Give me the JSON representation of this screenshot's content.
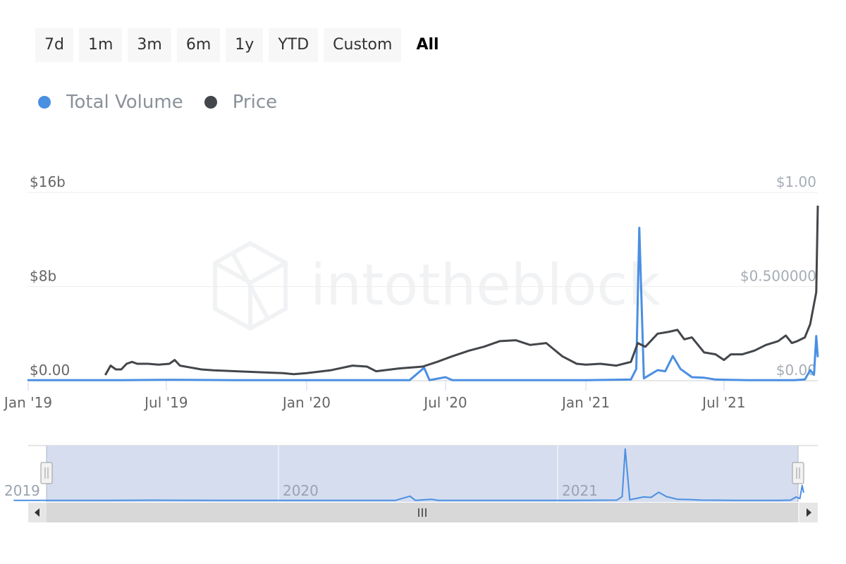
{
  "range_selector": {
    "buttons": [
      "7d",
      "1m",
      "3m",
      "6m",
      "1y",
      "YTD",
      "Custom",
      "All"
    ],
    "active": "All"
  },
  "legend": {
    "items": [
      {
        "label": "Total Volume",
        "color": "#4a8fe2"
      },
      {
        "label": "Price",
        "color": "#43464a"
      }
    ]
  },
  "watermark": "intotheblock",
  "colors": {
    "volume": "#4a8fe2",
    "price": "#43464a",
    "navigator_fill": "#d3dbee",
    "scrollbar": "#d8d8d8"
  },
  "chart_data": {
    "type": "line",
    "x_start": "2019-01-01",
    "x_end": "2021-11-01",
    "x_ticks": [
      {
        "date": "2019-01-01",
        "label": "Jan '19"
      },
      {
        "date": "2019-07-01",
        "label": "Jul '19"
      },
      {
        "date": "2020-01-01",
        "label": "Jan '20"
      },
      {
        "date": "2020-07-01",
        "label": "Jul '20"
      },
      {
        "date": "2021-01-01",
        "label": "Jan '21"
      },
      {
        "date": "2021-07-01",
        "label": "Jul '21"
      }
    ],
    "y_left": {
      "ticks": [
        {
          "value": 0,
          "label": "$0.00"
        },
        {
          "value": 8,
          "label": "$8b"
        },
        {
          "value": 16,
          "label": "$16b"
        }
      ],
      "range": [
        0,
        16
      ],
      "unit": "billion USD"
    },
    "y_right": {
      "ticks": [
        {
          "value": 0,
          "label": "$0.00"
        },
        {
          "value": 0.5,
          "label": "$0.500000"
        },
        {
          "value": 1.0,
          "label": "$1.00"
        }
      ],
      "range": [
        0,
        1.0
      ],
      "unit": "USD"
    },
    "navigator": {
      "year_labels": [
        {
          "date": "2019-01-01",
          "label": "2019"
        },
        {
          "date": "2020-01-01",
          "label": "2020"
        },
        {
          "date": "2021-01-01",
          "label": "2021"
        }
      ]
    },
    "series": [
      {
        "name": "Price",
        "axis": "right",
        "color": "#43464a",
        "points": [
          [
            "2019-04-12",
            0.03
          ],
          [
            "2019-04-19",
            0.08
          ],
          [
            "2019-04-26",
            0.06
          ],
          [
            "2019-05-03",
            0.06
          ],
          [
            "2019-05-10",
            0.09
          ],
          [
            "2019-05-17",
            0.1
          ],
          [
            "2019-05-24",
            0.09
          ],
          [
            "2019-06-07",
            0.09
          ],
          [
            "2019-06-21",
            0.085
          ],
          [
            "2019-07-05",
            0.09
          ],
          [
            "2019-07-12",
            0.11
          ],
          [
            "2019-07-19",
            0.08
          ],
          [
            "2019-08-02",
            0.07
          ],
          [
            "2019-08-16",
            0.06
          ],
          [
            "2019-09-01",
            0.055
          ],
          [
            "2019-10-01",
            0.05
          ],
          [
            "2019-11-01",
            0.045
          ],
          [
            "2019-12-01",
            0.04
          ],
          [
            "2019-12-15",
            0.035
          ],
          [
            "2020-01-01",
            0.04
          ],
          [
            "2020-02-01",
            0.055
          ],
          [
            "2020-03-01",
            0.08
          ],
          [
            "2020-03-20",
            0.075
          ],
          [
            "2020-04-01",
            0.05
          ],
          [
            "2020-05-01",
            0.065
          ],
          [
            "2020-06-01",
            0.075
          ],
          [
            "2020-06-20",
            0.1
          ],
          [
            "2020-07-10",
            0.13
          ],
          [
            "2020-08-01",
            0.16
          ],
          [
            "2020-08-20",
            0.18
          ],
          [
            "2020-09-10",
            0.21
          ],
          [
            "2020-10-01",
            0.215
          ],
          [
            "2020-10-20",
            0.19
          ],
          [
            "2020-11-10",
            0.2
          ],
          [
            "2020-12-01",
            0.13
          ],
          [
            "2020-12-20",
            0.09
          ],
          [
            "2021-01-01",
            0.085
          ],
          [
            "2021-01-20",
            0.09
          ],
          [
            "2021-02-10",
            0.08
          ],
          [
            "2021-03-01",
            0.1
          ],
          [
            "2021-03-10",
            0.2
          ],
          [
            "2021-03-20",
            0.18
          ],
          [
            "2021-04-05",
            0.25
          ],
          [
            "2021-04-20",
            0.26
          ],
          [
            "2021-05-01",
            0.27
          ],
          [
            "2021-05-10",
            0.22
          ],
          [
            "2021-05-20",
            0.23
          ],
          [
            "2021-06-05",
            0.15
          ],
          [
            "2021-06-20",
            0.14
          ],
          [
            "2021-07-01",
            0.11
          ],
          [
            "2021-07-10",
            0.14
          ],
          [
            "2021-07-25",
            0.14
          ],
          [
            "2021-08-10",
            0.16
          ],
          [
            "2021-08-25",
            0.19
          ],
          [
            "2021-09-10",
            0.21
          ],
          [
            "2021-09-20",
            0.24
          ],
          [
            "2021-09-28",
            0.2
          ],
          [
            "2021-10-05",
            0.21
          ],
          [
            "2021-10-15",
            0.23
          ],
          [
            "2021-10-22",
            0.3
          ],
          [
            "2021-10-30",
            0.47
          ],
          [
            "2021-11-01",
            0.93
          ]
        ]
      },
      {
        "name": "Total Volume",
        "axis": "left",
        "color": "#4a8fe2",
        "points": [
          [
            "2019-01-01",
            0.05
          ],
          [
            "2019-05-01",
            0.05
          ],
          [
            "2019-07-01",
            0.08
          ],
          [
            "2019-10-01",
            0.05
          ],
          [
            "2020-01-01",
            0.05
          ],
          [
            "2020-05-15",
            0.05
          ],
          [
            "2020-06-03",
            1.1
          ],
          [
            "2020-06-10",
            0.05
          ],
          [
            "2020-07-01",
            0.3
          ],
          [
            "2020-07-10",
            0.05
          ],
          [
            "2021-01-01",
            0.05
          ],
          [
            "2021-03-01",
            0.1
          ],
          [
            "2021-03-08",
            1.0
          ],
          [
            "2021-03-12",
            13.0
          ],
          [
            "2021-03-18",
            0.2
          ],
          [
            "2021-04-05",
            0.9
          ],
          [
            "2021-04-15",
            0.8
          ],
          [
            "2021-04-25",
            2.1
          ],
          [
            "2021-05-05",
            1.0
          ],
          [
            "2021-05-20",
            0.3
          ],
          [
            "2021-06-05",
            0.25
          ],
          [
            "2021-06-20",
            0.1
          ],
          [
            "2021-08-01",
            0.05
          ],
          [
            "2021-10-01",
            0.05
          ],
          [
            "2021-10-15",
            0.1
          ],
          [
            "2021-10-22",
            0.9
          ],
          [
            "2021-10-27",
            0.5
          ],
          [
            "2021-10-30",
            3.8
          ],
          [
            "2021-11-01",
            2.0
          ]
        ]
      }
    ]
  }
}
